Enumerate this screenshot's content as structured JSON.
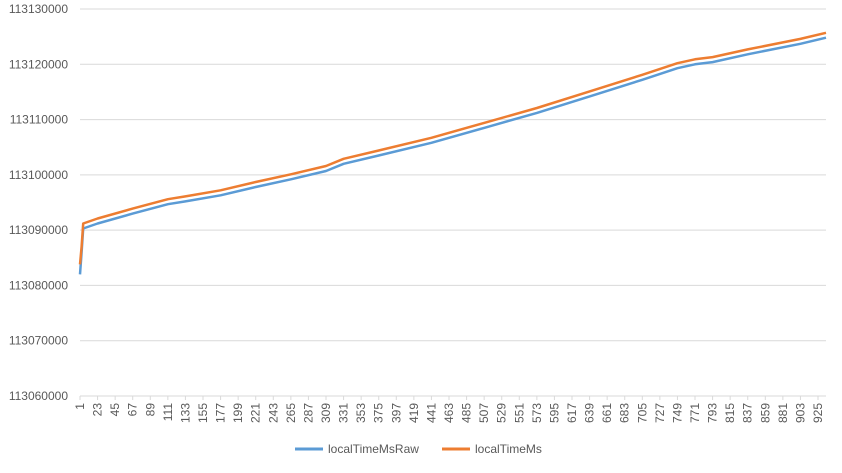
{
  "chart_data": {
    "type": "line",
    "x": [
      1,
      3,
      5,
      23,
      67,
      111,
      133,
      177,
      221,
      265,
      309,
      331,
      375,
      441,
      507,
      573,
      639,
      705,
      749,
      771,
      793,
      837,
      903,
      935
    ],
    "series": [
      {
        "name": "localTimeMsRaw",
        "color": "#5b9bd5",
        "values": [
          113082000,
          113086000,
          113090300,
          113091200,
          113093000,
          113094700,
          113095200,
          113096300,
          113097800,
          113099200,
          113100700,
          113102000,
          113103500,
          113105800,
          113108500,
          113111200,
          113114200,
          113117200,
          113119300,
          113120000,
          113120400,
          113121800,
          113123700,
          113124800
        ]
      },
      {
        "name": "localTimeMs",
        "color": "#ed7d31",
        "values": [
          113083800,
          113087000,
          113091200,
          113092100,
          113093900,
          113095600,
          113096100,
          113097200,
          113098700,
          113100100,
          113101600,
          113102900,
          113104400,
          113106700,
          113109400,
          113112100,
          113115100,
          113118100,
          113120200,
          113120900,
          113121300,
          113122700,
          113124600,
          113125700
        ]
      }
    ],
    "xlim": [
      1,
      935
    ],
    "xticks": [
      1,
      23,
      45,
      67,
      89,
      111,
      133,
      155,
      177,
      199,
      221,
      243,
      265,
      287,
      309,
      331,
      353,
      375,
      397,
      419,
      441,
      463,
      485,
      507,
      529,
      551,
      573,
      595,
      617,
      639,
      661,
      683,
      705,
      727,
      749,
      771,
      793,
      815,
      837,
      859,
      881,
      903,
      925
    ],
    "ylim": [
      113060000,
      113130000
    ],
    "yticks": [
      113060000,
      113070000,
      113080000,
      113090000,
      113100000,
      113110000,
      113120000,
      113130000
    ],
    "grid": true,
    "legend": "bottom"
  }
}
